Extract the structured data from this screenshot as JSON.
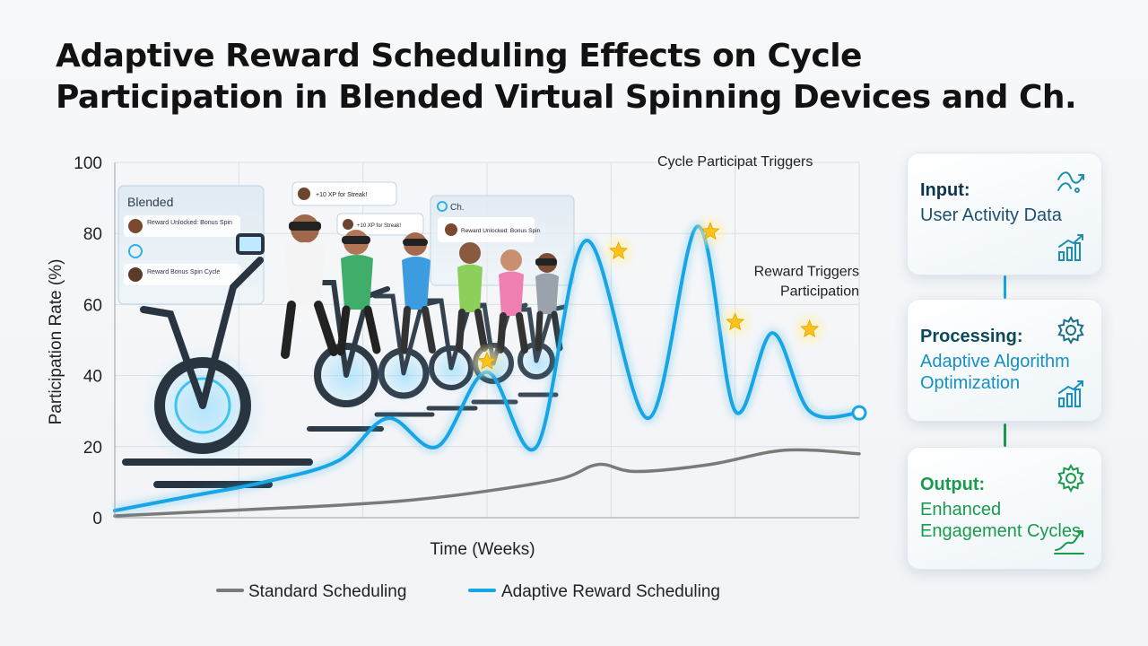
{
  "title_lines": [
    "Adaptive Reward Scheduling Effects on Cycle",
    "Participation in Blended Virtual Spinning Devices and Ch."
  ],
  "colors": {
    "standard": "#7a7a7a",
    "adaptive": "#16a6e6",
    "star": "#ffc21a",
    "grid": "#dcdfe4",
    "process_accent": "#1690c4",
    "output_accent": "#1a9a4c"
  },
  "chart_data": {
    "type": "line",
    "xlabel": "Time (Weeks)",
    "ylabel": "Participation Rate (%)",
    "ylim": [
      0,
      100
    ],
    "yticks": [
      0,
      20,
      40,
      60,
      80,
      100
    ],
    "xlim": [
      0,
      30
    ],
    "grid": true,
    "legend_position": "bottom-center",
    "series": [
      {
        "name": "Standard Scheduling",
        "color": "#7a7a7a",
        "x": [
          0,
          3,
          6,
          9,
          12,
          15,
          18,
          19.5,
          21,
          24,
          27,
          30
        ],
        "y": [
          0.5,
          1.5,
          2.5,
          3.5,
          5,
          7.5,
          11,
          15,
          13,
          15,
          19,
          18
        ]
      },
      {
        "name": "Adaptive Reward Scheduling",
        "color": "#16a6e6",
        "x": [
          0,
          3,
          6,
          9,
          11,
          13,
          15,
          17,
          19,
          21.5,
          23.5,
          25,
          26.5,
          28,
          30
        ],
        "y": [
          2,
          6,
          10,
          16,
          28,
          20,
          41,
          20,
          78,
          28,
          82,
          30,
          52,
          30,
          29.5
        ]
      }
    ],
    "stars": [
      {
        "x": 15,
        "y": 44
      },
      {
        "x": 20.3,
        "y": 75
      },
      {
        "x": 24,
        "y": 80.5
      },
      {
        "x": 25,
        "y": 55
      },
      {
        "x": 28,
        "y": 53
      }
    ],
    "end_marker": {
      "x": 30,
      "y": 29.5
    },
    "annotations": [
      {
        "lines": [
          "Cycle Participat Triggers"
        ],
        "x": 25,
        "y": 99,
        "anchor": "middle"
      },
      {
        "lines": [
          "Reward Triggers",
          "Participation"
        ],
        "x": 30,
        "y": 68,
        "anchor": "end"
      }
    ]
  },
  "scene": {
    "panels": [
      {
        "heading": "Blended",
        "items": [
          "Reward Unlocked: Bonus Spin",
          "Reward Bonus Spin Cycle"
        ]
      },
      {
        "heading": "",
        "items": [
          "+10 XP for Streak!"
        ]
      },
      {
        "heading": "",
        "items": [
          "+10 XP for Streak!"
        ]
      },
      {
        "heading": "Ch.",
        "items": [
          "Reward Unlocked: Bonus Spin"
        ]
      }
    ]
  },
  "pipeline": [
    {
      "head": "Input:",
      "body": "User Activity Data",
      "icon_top": "flow-arrows-icon",
      "icon_bottom": "growth-chart-icon"
    },
    {
      "head": "Processing:",
      "body": "Adaptive Algorithm Optimization",
      "icon_top": "gear-icon",
      "icon_bottom": "growth-chart-icon"
    },
    {
      "head": "Output:",
      "body": "Enhanced Engagement Cycles",
      "icon_top": "gear-icon",
      "icon_bottom": "trend-up-icon"
    }
  ]
}
